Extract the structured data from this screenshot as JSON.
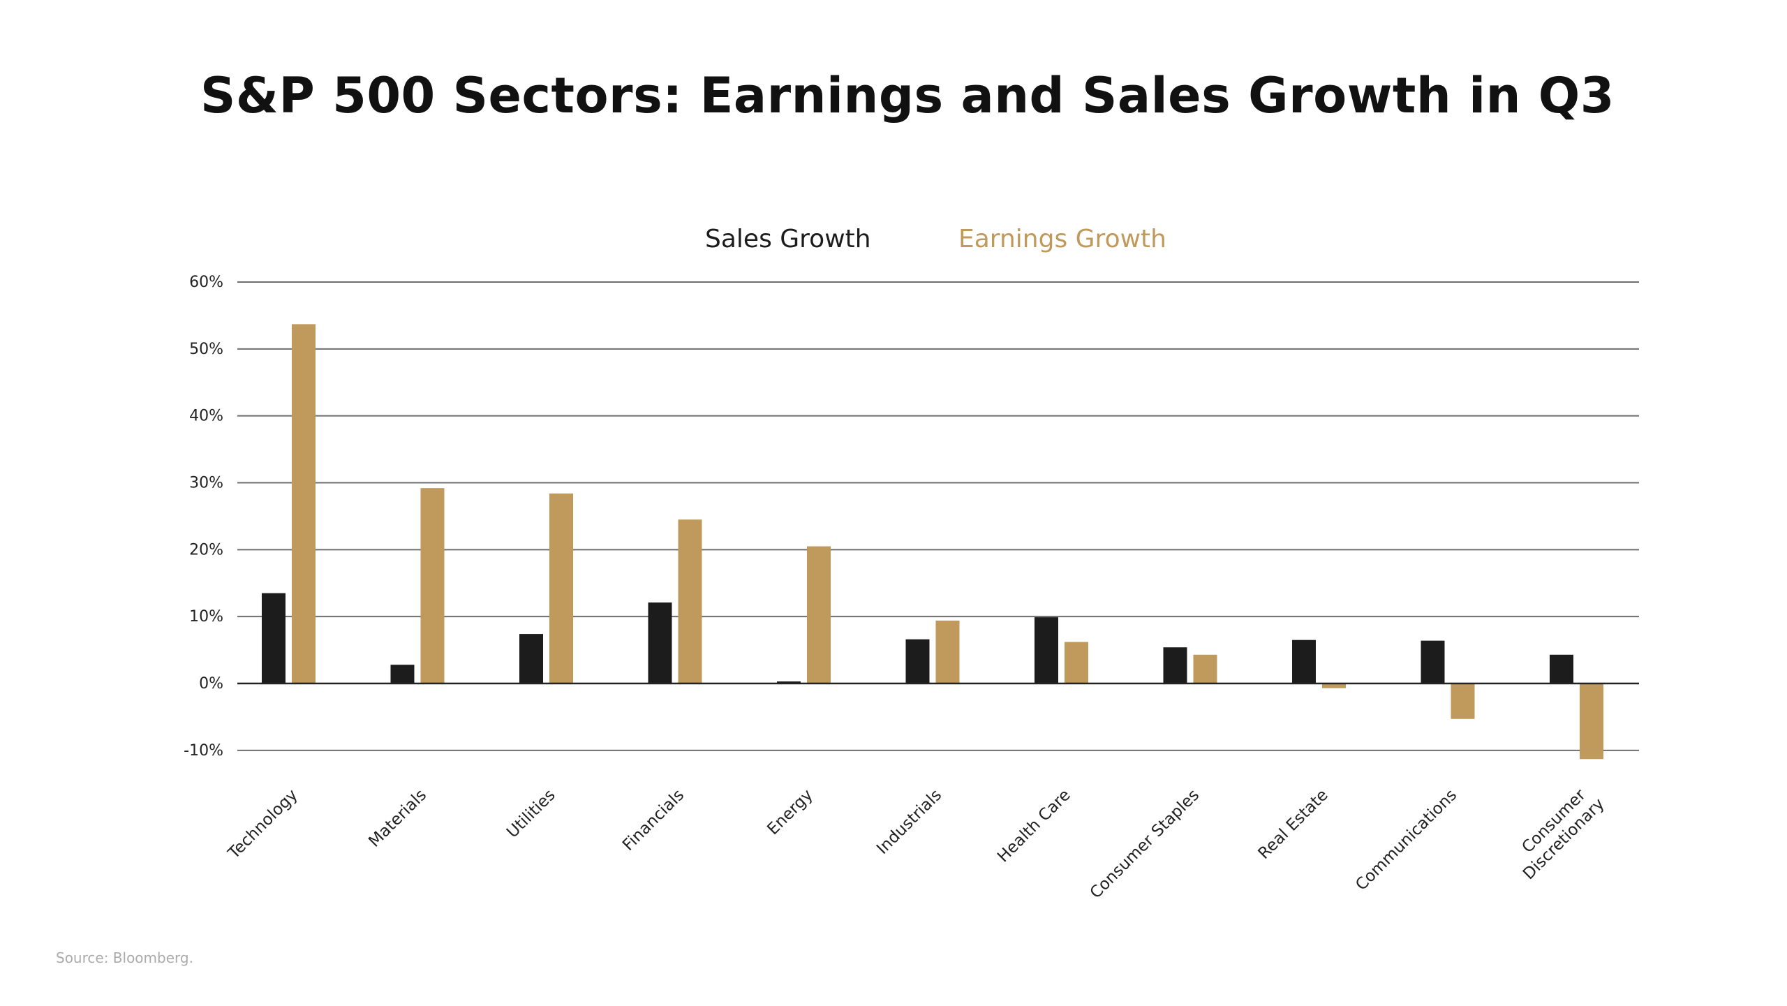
{
  "title": "S&P 500 Sectors: Earnings and Sales Growth in Q3",
  "source": "Source: Bloomberg.",
  "colors": {
    "sales": "#1c1c1c",
    "earnings": "#bf9a5c",
    "gridline": "#6e6e6e",
    "zero_line": "#222222",
    "tick_label": "#222222",
    "source_text": "#ababab"
  },
  "chart_data": {
    "type": "bar",
    "title": "S&P 500 Sectors: Earnings and Sales Growth in Q3",
    "xlabel": "",
    "ylabel": "",
    "ylim": [
      -10,
      60
    ],
    "yticks": [
      -10,
      0,
      10,
      20,
      30,
      40,
      50,
      60
    ],
    "ytick_labels": [
      "-10%",
      "0%",
      "10%",
      "20%",
      "30%",
      "40%",
      "50%",
      "60%"
    ],
    "grid": true,
    "legend_placement": "top-center",
    "categories": [
      "Technology",
      "Materials",
      "Utilities",
      "Financials",
      "Energy",
      "Industrials",
      "Health Care",
      "Consumer Staples",
      "Real Estate",
      "Communications",
      "Consumer Discretionary"
    ],
    "category_lines": [
      [
        "Technology"
      ],
      [
        "Materials"
      ],
      [
        "Utilities"
      ],
      [
        "Financials"
      ],
      [
        "Energy"
      ],
      [
        "Industrials"
      ],
      [
        "Health Care"
      ],
      [
        "Consumer Staples"
      ],
      [
        "Real Estate"
      ],
      [
        "Communications"
      ],
      [
        "Consumer",
        "Discretionary"
      ]
    ],
    "series": [
      {
        "name": "Sales Growth",
        "values": [
          13.5,
          2.8,
          7.4,
          12.1,
          0.3,
          6.6,
          9.9,
          5.4,
          6.5,
          6.4,
          4.3
        ]
      },
      {
        "name": "Earnings Growth",
        "values": [
          53.7,
          29.2,
          28.4,
          24.5,
          20.5,
          9.4,
          6.2,
          4.3,
          -0.7,
          -5.3,
          -11.3
        ]
      }
    ]
  }
}
